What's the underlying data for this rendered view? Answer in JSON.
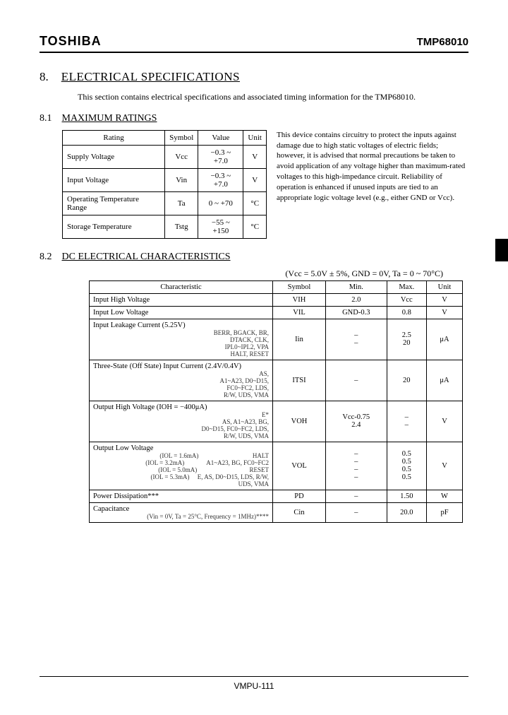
{
  "header": {
    "brand": "TOSHIBA",
    "part": "TMP68010"
  },
  "section": {
    "num": "8.",
    "title": "ELECTRICAL SPECIFICATIONS",
    "intro": "This section contains electrical specifications and associated timing information for the TMP68010."
  },
  "s81": {
    "num": "8.1",
    "title": "MAXIMUM RATINGS",
    "headers": [
      "Rating",
      "Symbol",
      "Value",
      "Unit"
    ],
    "rows": [
      {
        "rating": "Supply Voltage",
        "symbol": "Vcc",
        "value": "−0.3 ~ +7.0",
        "unit": "V"
      },
      {
        "rating": "Input Voltage",
        "symbol": "Vin",
        "value": "−0.3 ~ +7.0",
        "unit": "V"
      },
      {
        "rating": "Operating Temperature Range",
        "symbol": "Ta",
        "value": "0 ~ +70",
        "unit": "°C"
      },
      {
        "rating": "Storage Temperature",
        "symbol": "Tstg",
        "value": "−55 ~ +150",
        "unit": "°C"
      }
    ],
    "note": "This device contains circuitry to protect the inputs against damage due to high static voltages of electric fields; however, it is advised that normal precautions be taken to avoid application of any voltage higher than maximum-rated voltages to this high-impedance circuit. Reliability of operation is enhanced if unused inputs are tied to an appropriate logic voltage level (e.g., either GND or Vcc)."
  },
  "s82": {
    "num": "8.2",
    "title": "DC ELECTRICAL CHARACTERISTICS",
    "conditions": "(Vcc = 5.0V ± 5%, GND = 0V, Ta = 0 ~ 70°C)",
    "headers": [
      "Characteristic",
      "Symbol",
      "Min.",
      "Max.",
      "Unit"
    ],
    "rows": [
      {
        "char": "Input High Voltage",
        "sub": "",
        "sym": "VIH",
        "min": "2.0",
        "max": "Vcc",
        "unit": "V"
      },
      {
        "char": "Input Low Voltage",
        "sub": "",
        "sym": "VIL",
        "min": "GND-0.3",
        "max": "0.8",
        "unit": "V"
      },
      {
        "char": "Input Leakage Current (5.25V)",
        "sub": "BERR, BGACK, BR,\nDTACK, CLK,\nIPL0~IPL2, VPA\nHALT, RESET",
        "sym": "Iin",
        "min": "–\n–",
        "max": "2.5\n20",
        "unit": "μA"
      },
      {
        "char": "Three-State (Off State) Input Current (2.4V/0.4V)",
        "sub": "AS,\nA1~A23, D0~D15,\nFC0~FC2, LDS,\nR/W, UDS, VMA",
        "sym": "ITSI",
        "min": "–",
        "max": "20",
        "unit": "μA"
      },
      {
        "char": "Output High Voltage (IOH = −400μA)",
        "sub": "E*\nAS, A1~A23, BG,\nD0~D15, FC0~FC2, LDS,\nR/W, UDS, VMA",
        "sym": "VOH",
        "min": "Vcc-0.75\n2.4",
        "max": "–\n–",
        "unit": "V"
      },
      {
        "char": "Output Low Voltage",
        "sub": "(IOL = 1.6mA)                                  HALT\n(IOL = 3.2mA)              A1~A23, BG, FC0~FC2\n(IOL = 5.0mA)                                 RESET\n(IOL = 5.3mA)     E, AS, D0~D15, LDS, R/W,\n                                           UDS, VMA",
        "sym": "VOL",
        "min": "–\n–\n–\n–",
        "max": "0.5\n0.5\n0.5\n0.5",
        "unit": "V"
      },
      {
        "char": "Power Dissipation***",
        "sub": "",
        "sym": "PD",
        "min": "–",
        "max": "1.50",
        "unit": "W"
      },
      {
        "char": "Capacitance",
        "sub": "(Vin = 0V, Ta = 25°C, Frequency = 1MHz)****",
        "sym": "Cin",
        "min": "–",
        "max": "20.0",
        "unit": "pF"
      }
    ]
  },
  "footer": "VMPU-111",
  "colors": {
    "text": "#000000",
    "bg": "#ffffff"
  }
}
